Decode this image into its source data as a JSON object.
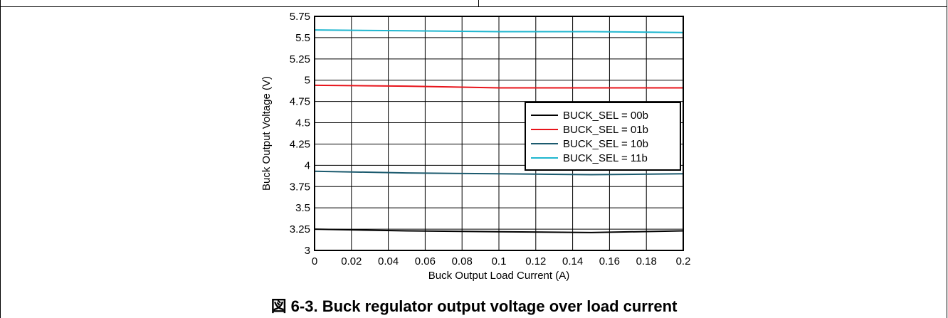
{
  "caption": "図 6-3. Buck regulator output voltage over load current",
  "chart_data": {
    "type": "line",
    "xlabel": "Buck Output Load Current (A)",
    "ylabel": "Buck Output Voltage (V)",
    "xlim": [
      0,
      0.2
    ],
    "ylim": [
      3,
      5.75
    ],
    "x_ticks": [
      "0",
      "0.02",
      "0.04",
      "0.06",
      "0.08",
      "0.1",
      "0.12",
      "0.14",
      "0.16",
      "0.18",
      "0.2"
    ],
    "y_ticks": [
      "3",
      "3.25",
      "3.5",
      "3.75",
      "4",
      "4.25",
      "4.5",
      "4.75",
      "5",
      "5.25",
      "5.5",
      "5.75"
    ],
    "x_tick_values": [
      0,
      0.02,
      0.04,
      0.06,
      0.08,
      0.1,
      0.12,
      0.14,
      0.16,
      0.18,
      0.2
    ],
    "y_tick_values": [
      3,
      3.25,
      3.5,
      3.75,
      4,
      4.25,
      4.5,
      4.75,
      5,
      5.25,
      5.5,
      5.75
    ],
    "grid": true,
    "legend_position": "right-middle",
    "series": [
      {
        "name": "BUCK_SEL = 00b",
        "color": "#000000",
        "x": [
          0,
          0.05,
          0.1,
          0.15,
          0.2
        ],
        "y": [
          3.25,
          3.23,
          3.22,
          3.21,
          3.23
        ]
      },
      {
        "name": "BUCK_SEL = 01b",
        "color": "#e8141b",
        "x": [
          0,
          0.05,
          0.1,
          0.15,
          0.2
        ],
        "y": [
          4.94,
          4.93,
          4.91,
          4.91,
          4.91
        ]
      },
      {
        "name": "BUCK_SEL = 10b",
        "color": "#1b5a6e",
        "x": [
          0,
          0.05,
          0.1,
          0.15,
          0.2
        ],
        "y": [
          3.93,
          3.91,
          3.9,
          3.89,
          3.9
        ]
      },
      {
        "name": "BUCK_SEL = 11b",
        "color": "#1fb6cf",
        "x": [
          0,
          0.05,
          0.1,
          0.15,
          0.2
        ],
        "y": [
          5.59,
          5.58,
          5.57,
          5.57,
          5.56
        ]
      }
    ]
  }
}
